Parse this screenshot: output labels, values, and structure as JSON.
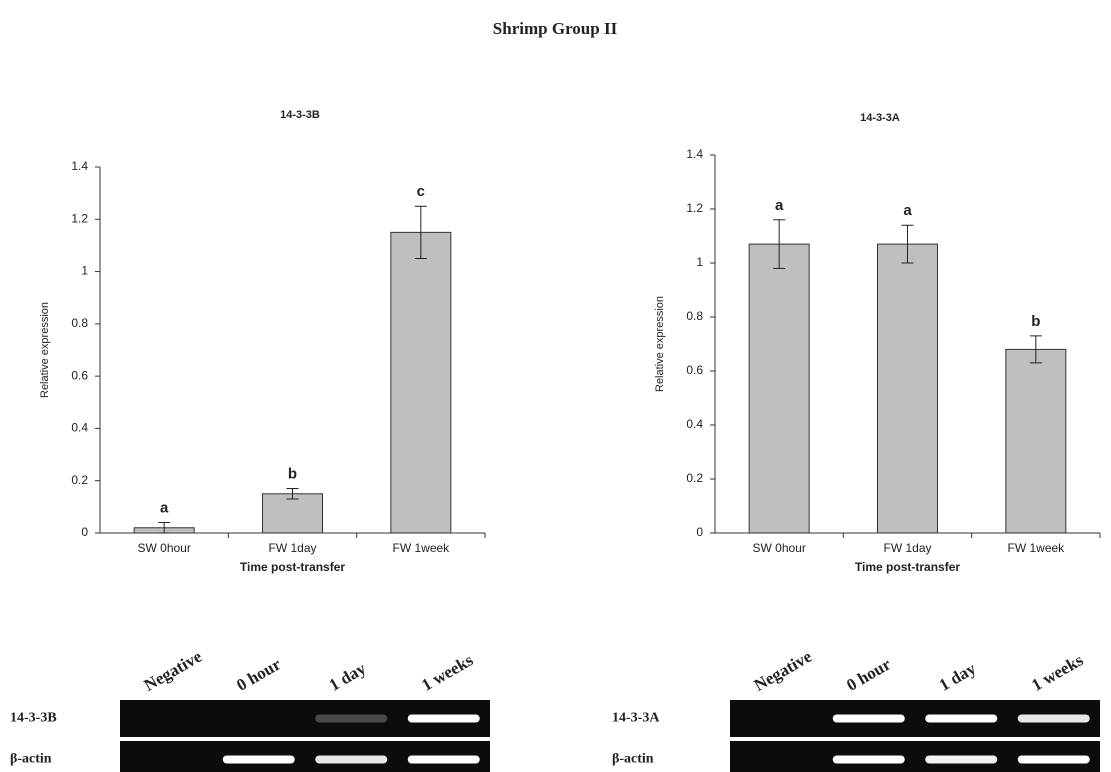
{
  "title": "Shrimp Group II",
  "chart_data": [
    {
      "type": "bar",
      "title": "14-3-3B",
      "y_label": "Relative expression",
      "x_label": "Time post-transfer",
      "categories": [
        "SW 0hour",
        "FW 1day",
        "FW 1week"
      ],
      "values": [
        0.02,
        0.15,
        1.15
      ],
      "errors": [
        0.02,
        0.02,
        0.1
      ],
      "annotations": [
        "a",
        "b",
        "c"
      ],
      "color": "#bfbfbf",
      "ylim": [
        0,
        1.4
      ],
      "yticks": [
        0,
        0.2,
        0.4,
        0.6,
        0.8,
        1,
        1.2,
        1.4
      ]
    },
    {
      "type": "bar",
      "title": "14-3-3A",
      "y_label": "Relative expression",
      "x_label": "Time post-transfer",
      "categories": [
        "SW 0hour",
        "FW 1day",
        "FW 1week"
      ],
      "values": [
        1.07,
        1.07,
        0.68
      ],
      "errors": [
        0.09,
        0.07,
        0.05
      ],
      "annotations": [
        "a",
        "a",
        "b"
      ],
      "color": "#bfbfbf",
      "ylim": [
        0,
        1.4
      ],
      "yticks": [
        0,
        0.2,
        0.4,
        0.6,
        0.8,
        1,
        1.2,
        1.4
      ]
    }
  ],
  "gels": [
    {
      "lanes": [
        "Negative",
        "0 hour",
        "1 day",
        "1 weeks"
      ],
      "rows": [
        "14-3-3B",
        "β-actin"
      ]
    },
    {
      "lanes": [
        "Negative",
        "0 hour",
        "1 day",
        "1 weeks"
      ],
      "rows": [
        "14-3-3A",
        "β-actin"
      ]
    }
  ]
}
